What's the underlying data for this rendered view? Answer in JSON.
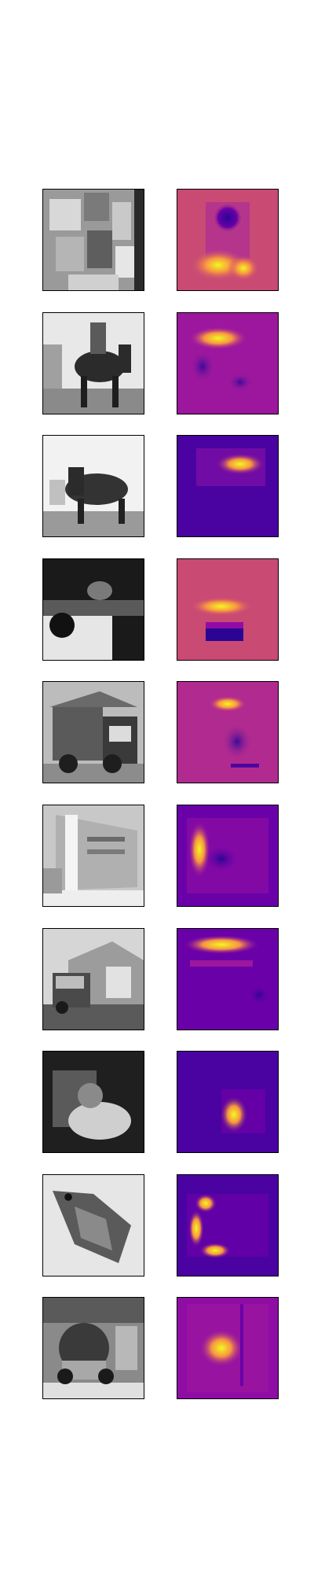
{
  "figure": {
    "rows": [
      {
        "input": "image",
        "saliency": "heatmap"
      },
      {
        "input": "image",
        "saliency": "heatmap"
      },
      {
        "input": "image",
        "saliency": "heatmap"
      },
      {
        "input": "image",
        "saliency": "heatmap"
      },
      {
        "input": "image",
        "saliency": "heatmap"
      },
      {
        "input": "image",
        "saliency": "heatmap"
      },
      {
        "input": "image",
        "saliency": "heatmap"
      },
      {
        "input": "image",
        "saliency": "heatmap"
      },
      {
        "input": "image",
        "saliency": "heatmap"
      },
      {
        "input": "image",
        "saliency": "heatmap"
      }
    ],
    "colors": {
      "heatmap_low": "#2a0593",
      "heatmap_mid": "#b12a90",
      "heatmap_high": "#f0f921",
      "gray_dark": "#1a1a1a",
      "gray_light": "#f0f0f0",
      "frame": "#000000"
    }
  }
}
